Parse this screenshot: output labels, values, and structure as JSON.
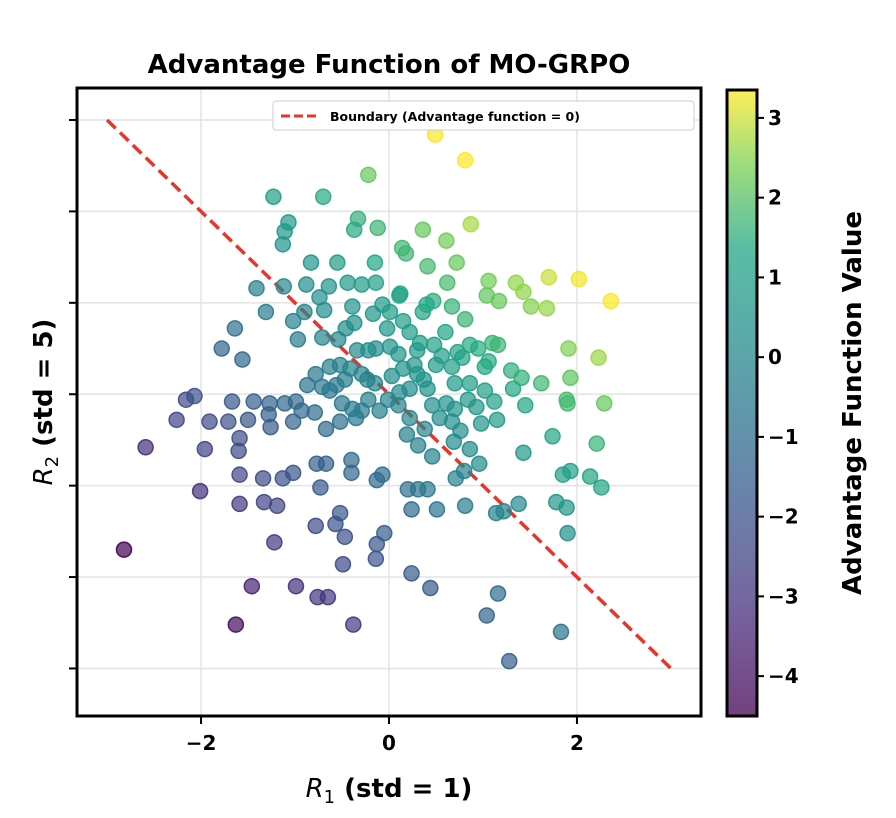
{
  "chart_data": {
    "type": "scatter",
    "title": "Advantage Function of MO-GRPO",
    "xlabel_var": "R",
    "xlabel_sub": "1",
    "xlabel_rest": " (std = 1)",
    "ylabel_var": "R",
    "ylabel_sub": "2",
    "ylabel_rest": " (std = 5)",
    "xlim": [
      -3.32,
      3.32
    ],
    "ylim": [
      -17.6,
      16.75
    ],
    "xticks": [
      -2,
      0,
      2
    ],
    "xtick_labels": [
      "−2",
      "0",
      "2"
    ],
    "yticks": [
      15,
      10,
      5,
      0,
      -5,
      -10,
      -15
    ],
    "grid": true,
    "legend": {
      "placement": "top-right",
      "label": "Boundary (Advantage function = 0)"
    },
    "boundary": {
      "x": [
        -3,
        3
      ],
      "y": [
        15,
        -15
      ],
      "color": "#e8352a",
      "style": "dashed"
    },
    "colorbar": {
      "label": "Advantage Function Value",
      "colormap": "viridis",
      "range": [
        -4.5,
        3.35
      ],
      "ticks": [
        3,
        2,
        1,
        0,
        -1,
        -2,
        -3,
        -4
      ],
      "tick_labels": [
        "3",
        "2",
        "1",
        "0",
        "−1",
        "−2",
        "−3",
        "−4"
      ]
    },
    "color_value": "R1 + R2/5",
    "points": [
      [
        0.49,
        14.2
      ],
      [
        0.81,
        12.8
      ],
      [
        -0.22,
        12.0
      ],
      [
        -1.23,
        10.8
      ],
      [
        -0.7,
        10.8
      ],
      [
        -1.07,
        9.4
      ],
      [
        -1.11,
        8.9
      ],
      [
        -1.13,
        8.2
      ],
      [
        -0.33,
        9.6
      ],
      [
        -0.37,
        9.0
      ],
      [
        -0.12,
        9.1
      ],
      [
        0.14,
        8.0
      ],
      [
        0.36,
        9.0
      ],
      [
        0.61,
        8.4
      ],
      [
        0.87,
        9.3
      ],
      [
        0.18,
        7.7
      ],
      [
        -0.83,
        7.2
      ],
      [
        -0.55,
        7.2
      ],
      [
        -0.15,
        7.2
      ],
      [
        -0.14,
        6.1
      ],
      [
        0.12,
        5.5
      ],
      [
        0.41,
        7.0
      ],
      [
        0.72,
        7.2
      ],
      [
        0.62,
        6.1
      ],
      [
        1.06,
        6.2
      ],
      [
        1.35,
        6.1
      ],
      [
        1.43,
        5.6
      ],
      [
        1.7,
        6.4
      ],
      [
        2.02,
        6.3
      ],
      [
        2.36,
        5.1
      ],
      [
        1.68,
        4.7
      ],
      [
        1.51,
        4.8
      ],
      [
        1.17,
        5.1
      ],
      [
        1.04,
        5.4
      ],
      [
        0.81,
        4.1
      ],
      [
        0.67,
        4.8
      ],
      [
        0.47,
        5.1
      ],
      [
        0.36,
        4.5
      ],
      [
        0.4,
        4.9
      ],
      [
        0.11,
        5.4
      ],
      [
        -0.07,
        4.9
      ],
      [
        -0.29,
        6.0
      ],
      [
        -0.44,
        6.1
      ],
      [
        -0.64,
        5.9
      ],
      [
        -0.88,
        6.0
      ],
      [
        -1.12,
        5.9
      ],
      [
        -1.41,
        5.8
      ],
      [
        -1.31,
        4.5
      ],
      [
        -0.9,
        4.5
      ],
      [
        -0.74,
        5.3
      ],
      [
        -1.02,
        4.0
      ],
      [
        -0.39,
        4.8
      ],
      [
        -0.37,
        3.9
      ],
      [
        -0.46,
        3.6
      ],
      [
        -0.69,
        4.6
      ],
      [
        -0.54,
        3.0
      ],
      [
        -0.17,
        4.4
      ],
      [
        0.01,
        4.5
      ],
      [
        0.15,
        4.0
      ],
      [
        0.22,
        3.4
      ],
      [
        -0.02,
        3.6
      ],
      [
        -0.34,
        2.4
      ],
      [
        -0.22,
        2.4
      ],
      [
        -0.14,
        2.5
      ],
      [
        0.01,
        2.6
      ],
      [
        0.1,
        2.2
      ],
      [
        0.3,
        2.4
      ],
      [
        0.48,
        2.7
      ],
      [
        0.56,
        2.1
      ],
      [
        0.73,
        2.3
      ],
      [
        0.86,
        2.7
      ],
      [
        0.95,
        2.5
      ],
      [
        1.1,
        2.8
      ],
      [
        1.16,
        2.7
      ],
      [
        0.5,
        1.6
      ],
      [
        0.67,
        1.5
      ],
      [
        0.78,
        2.0
      ],
      [
        1.02,
        1.5
      ],
      [
        1.3,
        1.3
      ],
      [
        1.91,
        2.5
      ],
      [
        2.23,
        2.0
      ],
      [
        1.93,
        0.9
      ],
      [
        1.41,
        0.9
      ],
      [
        1.62,
        0.6
      ],
      [
        1.89,
        -0.3
      ],
      [
        2.29,
        -0.5
      ],
      [
        1.9,
        -0.5
      ],
      [
        -1.64,
        3.6
      ],
      [
        -1.56,
        1.9
      ],
      [
        -0.97,
        3.0
      ],
      [
        -0.71,
        3.1
      ],
      [
        -0.63,
        1.5
      ],
      [
        -0.78,
        1.1
      ],
      [
        -0.52,
        1.6
      ],
      [
        -0.41,
        1.4
      ],
      [
        -0.56,
        0.5
      ],
      [
        -0.47,
        0.8
      ],
      [
        -0.29,
        1.1
      ],
      [
        -0.23,
        0.8
      ],
      [
        -0.15,
        0.6
      ],
      [
        0.03,
        1.0
      ],
      [
        0.15,
        1.4
      ],
      [
        0.27,
        1.6
      ],
      [
        0.3,
        1.1
      ],
      [
        0.37,
        0.8
      ],
      [
        0.41,
        0.3
      ],
      [
        0.22,
        0.3
      ],
      [
        0.11,
        0.1
      ],
      [
        -0.01,
        -0.3
      ],
      [
        -0.22,
        -0.3
      ],
      [
        -0.39,
        -0.8
      ],
      [
        -0.5,
        -0.5
      ],
      [
        -0.63,
        0.2
      ],
      [
        -0.71,
        0.4
      ],
      [
        -0.87,
        0.5
      ],
      [
        -0.99,
        -0.4
      ],
      [
        -1.11,
        -0.5
      ],
      [
        -1.27,
        -0.5
      ],
      [
        -1.44,
        -0.4
      ],
      [
        -1.67,
        -0.4
      ],
      [
        -1.78,
        2.5
      ],
      [
        -2.16,
        -0.3
      ],
      [
        -2.07,
        -0.1
      ],
      [
        -2.26,
        -1.4
      ],
      [
        -1.71,
        -1.5
      ],
      [
        -1.59,
        -2.4
      ],
      [
        -1.6,
        -3.1
      ],
      [
        -1.91,
        -1.5
      ],
      [
        -1.96,
        -3.0
      ],
      [
        -2.59,
        -2.9
      ],
      [
        -2.01,
        -5.3
      ],
      [
        -1.5,
        -1.4
      ],
      [
        -1.28,
        -1.1
      ],
      [
        -1.26,
        -1.8
      ],
      [
        -1.02,
        -1.5
      ],
      [
        -0.93,
        -0.9
      ],
      [
        -0.79,
        -1.0
      ],
      [
        -0.67,
        -1.9
      ],
      [
        -0.52,
        -1.5
      ],
      [
        -0.35,
        -1.3
      ],
      [
        -0.29,
        -0.9
      ],
      [
        -0.1,
        -0.9
      ],
      [
        0.1,
        -0.6
      ],
      [
        0.22,
        -1.3
      ],
      [
        0.46,
        -0.6
      ],
      [
        0.61,
        -0.5
      ],
      [
        0.7,
        -0.8
      ],
      [
        0.84,
        -0.3
      ],
      [
        0.93,
        -0.7
      ],
      [
        1.12,
        -0.4
      ],
      [
        1.45,
        -0.6
      ],
      [
        0.54,
        -1.3
      ],
      [
        0.67,
        -1.5
      ],
      [
        0.76,
        -2.0
      ],
      [
        0.38,
        -1.9
      ],
      [
        0.19,
        -2.2
      ],
      [
        0.31,
        -2.8
      ],
      [
        0.46,
        -3.4
      ],
      [
        0.69,
        -2.6
      ],
      [
        0.86,
        -3.0
      ],
      [
        0.96,
        -3.8
      ],
      [
        0.8,
        -4.2
      ],
      [
        1.15,
        -1.4
      ],
      [
        0.98,
        -1.6
      ],
      [
        1.43,
        -3.2
      ],
      [
        1.74,
        -2.3
      ],
      [
        2.21,
        -2.7
      ],
      [
        1.93,
        -4.2
      ],
      [
        1.85,
        -4.4
      ],
      [
        2.14,
        -4.5
      ],
      [
        2.26,
        -5.1
      ],
      [
        1.78,
        -5.9
      ],
      [
        1.89,
        -6.2
      ],
      [
        1.9,
        -7.6
      ],
      [
        0.81,
        -6.1
      ],
      [
        0.71,
        -4.6
      ],
      [
        0.31,
        -5.2
      ],
      [
        0.41,
        -5.2
      ],
      [
        0.2,
        -5.2
      ],
      [
        0.51,
        -6.3
      ],
      [
        0.24,
        -6.3
      ],
      [
        -0.13,
        -4.7
      ],
      [
        -0.07,
        -4.4
      ],
      [
        -0.4,
        -4.3
      ],
      [
        -0.4,
        -3.6
      ],
      [
        -0.67,
        -3.8
      ],
      [
        -0.77,
        -3.8
      ],
      [
        -1.02,
        -4.3
      ],
      [
        -1.13,
        -4.6
      ],
      [
        -0.73,
        -5.1
      ],
      [
        -1.34,
        -4.6
      ],
      [
        -1.59,
        -4.4
      ],
      [
        -1.33,
        -5.9
      ],
      [
        -1.59,
        -6.0
      ],
      [
        -1.19,
        -6.1
      ],
      [
        -1.22,
        -8.1
      ],
      [
        -0.52,
        -6.5
      ],
      [
        -0.47,
        -7.8
      ],
      [
        -0.78,
        -7.2
      ],
      [
        -0.57,
        -7.1
      ],
      [
        -0.05,
        -7.6
      ],
      [
        -0.13,
        -8.2
      ],
      [
        -0.14,
        -9.0
      ],
      [
        -0.49,
        -9.3
      ],
      [
        -0.76,
        -11.1
      ],
      [
        -0.65,
        -11.1
      ],
      [
        -0.99,
        -10.5
      ],
      [
        -1.46,
        -10.5
      ],
      [
        -1.63,
        -12.6
      ],
      [
        -2.82,
        -8.5
      ],
      [
        -0.38,
        -12.6
      ],
      [
        0.24,
        -9.8
      ],
      [
        0.44,
        -10.6
      ],
      [
        1.16,
        -10.9
      ],
      [
        1.04,
        -12.1
      ],
      [
        1.83,
        -13.0
      ],
      [
        1.28,
        -14.6
      ],
      [
        1.22,
        -6.4
      ],
      [
        1.38,
        -6.0
      ],
      [
        1.14,
        -6.5
      ],
      [
        0.33,
        2.8
      ],
      [
        0.6,
        3.4
      ],
      [
        1.32,
        0.3
      ],
      [
        1.06,
        1.8
      ],
      [
        0.7,
        0.6
      ],
      [
        0.86,
        0.6
      ],
      [
        1.02,
        0.2
      ]
    ]
  }
}
